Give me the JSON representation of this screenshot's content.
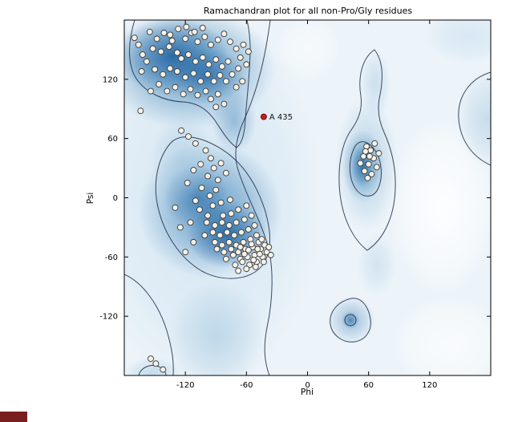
{
  "chart_data": {
    "type": "scatter",
    "title": "Ramachandran plot for all non-Pro/Gly residues",
    "xlabel": "Phi",
    "ylabel": "Psi",
    "xlim": [
      -180,
      180
    ],
    "ylim": [
      -180,
      180
    ],
    "xticks": [
      -120,
      -60,
      0,
      60,
      120
    ],
    "yticks": [
      -120,
      -60,
      0,
      60,
      120
    ],
    "grid": false,
    "legend": "none",
    "marker_style": {
      "fill": "#f7f2e8",
      "stroke": "#3a3a3a",
      "radius": 3.5
    },
    "highlight": {
      "label": "A 435",
      "phi": -43,
      "psi": 82,
      "color": "#d11a1a",
      "edge": "#5a0a0a"
    },
    "density_regions": [
      {
        "name": "beta-sheet",
        "center": [
          -110,
          135
        ]
      },
      {
        "name": "alpha-helix",
        "center": [
          -70,
          -35
        ]
      },
      {
        "name": "left-handed-alpha",
        "center": [
          60,
          38
        ]
      },
      {
        "name": "minor-region",
        "center": [
          47,
          -118
        ]
      }
    ],
    "points": [
      [
        -155,
        168
      ],
      [
        -148,
        161
      ],
      [
        -141,
        167
      ],
      [
        -133,
        159
      ],
      [
        -152,
        151
      ],
      [
        -144,
        148
      ],
      [
        -136,
        153
      ],
      [
        -128,
        147
      ],
      [
        -120,
        161
      ],
      [
        -114,
        167
      ],
      [
        -108,
        158
      ],
      [
        -101,
        163
      ],
      [
        -95,
        155
      ],
      [
        -88,
        160
      ],
      [
        -82,
        166
      ],
      [
        -76,
        158
      ],
      [
        -70,
        151
      ],
      [
        -124,
        141
      ],
      [
        -117,
        145
      ],
      [
        -110,
        138
      ],
      [
        -103,
        142
      ],
      [
        -97,
        135
      ],
      [
        -90,
        140
      ],
      [
        -84,
        133
      ],
      [
        -78,
        138
      ],
      [
        -135,
        131
      ],
      [
        -128,
        128
      ],
      [
        -142,
        125
      ],
      [
        -150,
        130
      ],
      [
        -158,
        138
      ],
      [
        -163,
        128
      ],
      [
        -120,
        122
      ],
      [
        -112,
        126
      ],
      [
        -105,
        118
      ],
      [
        -98,
        125
      ],
      [
        -92,
        118
      ],
      [
        -86,
        124
      ],
      [
        -80,
        118
      ],
      [
        -74,
        125
      ],
      [
        -68,
        131
      ],
      [
        -130,
        112
      ],
      [
        -138,
        108
      ],
      [
        -122,
        105
      ],
      [
        -115,
        110
      ],
      [
        -108,
        104
      ],
      [
        -100,
        108
      ],
      [
        -146,
        115
      ],
      [
        -154,
        108
      ],
      [
        -95,
        100
      ],
      [
        -88,
        105
      ],
      [
        -70,
        112
      ],
      [
        -64,
        118
      ],
      [
        -60,
        135
      ],
      [
        -66,
        142
      ],
      [
        -63,
        155
      ],
      [
        -58,
        148
      ],
      [
        -135,
        165
      ],
      [
        -127,
        171
      ],
      [
        -119,
        173
      ],
      [
        -111,
        168
      ],
      [
        -103,
        172
      ],
      [
        -166,
        155
      ],
      [
        -170,
        162
      ],
      [
        -162,
        145
      ],
      [
        -90,
        92
      ],
      [
        -82,
        95
      ],
      [
        -164,
        88
      ],
      [
        -117,
        62
      ],
      [
        -110,
        55
      ],
      [
        -124,
        68
      ],
      [
        -100,
        48
      ],
      [
        -95,
        40
      ],
      [
        -105,
        34
      ],
      [
        -92,
        30
      ],
      [
        -85,
        35
      ],
      [
        -98,
        22
      ],
      [
        -88,
        18
      ],
      [
        -80,
        25
      ],
      [
        -112,
        28
      ],
      [
        -90,
        8
      ],
      [
        -96,
        2
      ],
      [
        -104,
        10
      ],
      [
        -76,
        -2
      ],
      [
        -118,
        15
      ],
      [
        -85,
        -5
      ],
      [
        -93,
        -8
      ],
      [
        -110,
        -3
      ],
      [
        -60,
        -8
      ],
      [
        -68,
        -12
      ],
      [
        -75,
        -16
      ],
      [
        -83,
        -18
      ],
      [
        -98,
        -18
      ],
      [
        -106,
        -12
      ],
      [
        -55,
        -18
      ],
      [
        -62,
        -22
      ],
      [
        -70,
        -25
      ],
      [
        -77,
        -28
      ],
      [
        -84,
        -25
      ],
      [
        -91,
        -28
      ],
      [
        -99,
        -25
      ],
      [
        -115,
        -25
      ],
      [
        -52,
        -28
      ],
      [
        -58,
        -32
      ],
      [
        -65,
        -35
      ],
      [
        -72,
        -38
      ],
      [
        -79,
        -35
      ],
      [
        -86,
        -38
      ],
      [
        -93,
        -35
      ],
      [
        -101,
        -38
      ],
      [
        -50,
        -38
      ],
      [
        -56,
        -42
      ],
      [
        -63,
        -45
      ],
      [
        -70,
        -48
      ],
      [
        -77,
        -45
      ],
      [
        -84,
        -48
      ],
      [
        -91,
        -45
      ],
      [
        -48,
        -45
      ],
      [
        -54,
        -50
      ],
      [
        -61,
        -52
      ],
      [
        -68,
        -55
      ],
      [
        -75,
        -52
      ],
      [
        -82,
        -55
      ],
      [
        -89,
        -52
      ],
      [
        -46,
        -52
      ],
      [
        -52,
        -58
      ],
      [
        -59,
        -60
      ],
      [
        -66,
        -62
      ],
      [
        -73,
        -58
      ],
      [
        -80,
        -62
      ],
      [
        -44,
        -60
      ],
      [
        -50,
        -65
      ],
      [
        -57,
        -68
      ],
      [
        -64,
        -65
      ],
      [
        -71,
        -68
      ],
      [
        -60,
        -72
      ],
      [
        -68,
        -74
      ],
      [
        -42,
        -48
      ],
      [
        -40,
        -55
      ],
      [
        -38,
        -50
      ],
      [
        -45,
        -42
      ],
      [
        -47,
        -57
      ],
      [
        -53,
        -63
      ],
      [
        -55,
        -47
      ],
      [
        -49,
        -52
      ],
      [
        -62,
        -57
      ],
      [
        -58,
        -53
      ],
      [
        -66,
        -50
      ],
      [
        -43,
        -65
      ],
      [
        -51,
        -70
      ],
      [
        -36,
        -58
      ],
      [
        -125,
        -30
      ],
      [
        -120,
        -55
      ],
      [
        -112,
        -45
      ],
      [
        -130,
        -10
      ],
      [
        58,
        52
      ],
      [
        62,
        48
      ],
      [
        55,
        42
      ],
      [
        65,
        40
      ],
      [
        60,
        34
      ],
      [
        68,
        31
      ],
      [
        56,
        27
      ],
      [
        63,
        24
      ],
      [
        70,
        45
      ],
      [
        52,
        35
      ],
      [
        66,
        55
      ],
      [
        59,
        20
      ],
      [
        61,
        42
      ],
      [
        57,
        47
      ],
      [
        -149,
        -168
      ],
      [
        -142,
        -174
      ],
      [
        -154,
        -163
      ]
    ]
  },
  "colors": {
    "plot_bg": "#edf4f9",
    "density_deep": "#1b5f9e",
    "density_mid": "#4a8abc",
    "density_light": "#9dc3dd",
    "density_pale": "#cfe3f1",
    "contour": "#1c2b45",
    "marker_fill": "#f7f2e8",
    "highlight": "#d11a1a",
    "corner_mark": "#7a1f1f"
  }
}
